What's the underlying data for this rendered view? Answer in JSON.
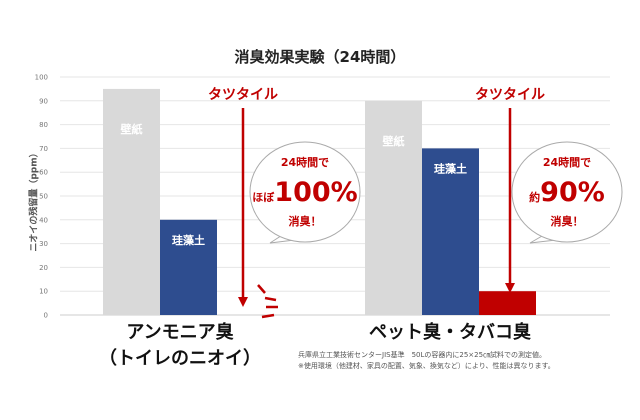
{
  "chart_data": {
    "type": "bar",
    "title": "消臭効果実験（24時間）",
    "ylabel": "ニオイの残留量（ppm）",
    "xlabel": "",
    "ylim": [
      0,
      100
    ],
    "yticks": [
      0,
      10,
      20,
      30,
      40,
      50,
      60,
      70,
      80,
      90,
      100
    ],
    "grid": true,
    "categories": [
      {
        "line1": "アンモニア臭",
        "line2": "（トイレのニオイ）"
      },
      {
        "line1": "ペット臭・タバコ臭",
        "line2": ""
      }
    ],
    "series": [
      {
        "name": "壁紙",
        "values": [
          95,
          90
        ],
        "color": "#d9d9d9"
      },
      {
        "name": "珪藻土",
        "values": [
          40,
          70
        ],
        "color": "#2e4d8f"
      },
      {
        "name": "タツタイル",
        "values": [
          0,
          10
        ],
        "color": "#c00000"
      }
    ],
    "annotations": [
      {
        "arrow_label": "タツタイル",
        "bubble_line1": "24時間で",
        "bubble_prefix": "ほぼ",
        "bubble_big": "100%",
        "bubble_line3": "消臭！"
      },
      {
        "arrow_label": "タツタイル",
        "bubble_line1": "24時間で",
        "bubble_prefix": "約",
        "bubble_big": "90%",
        "bubble_line3": "消臭！"
      }
    ]
  },
  "footnote": {
    "line1": "兵庫県立工業技術センターJIS基準　50Lの容器内に25×25㎝試料での測定値。",
    "line2": "※使用環境（他建材、家具の配置、気象、換気など）により、性能は異なります。"
  },
  "colors": {
    "accent": "#c00000",
    "grid": "#e6e6e6",
    "axis": "#cccccc"
  }
}
